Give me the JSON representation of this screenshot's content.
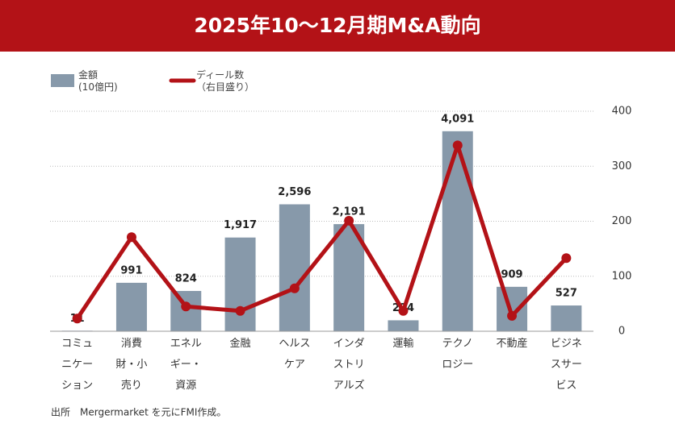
{
  "chart_data": {
    "type": "bar-line",
    "title": "2025年10〜12月期M&A動向",
    "categories": [
      "コミュニケーション",
      "消費財・小売り",
      "エネルギー・資源",
      "金融",
      "ヘルスケア",
      "インダストリアルズ",
      "運輸",
      "テクノロジー",
      "不動産",
      "ビジネスサービス"
    ],
    "series": [
      {
        "name": "金額\n(10億円)",
        "type": "bar",
        "color": "#8799aa",
        "values": [
          11,
          991,
          824,
          1917,
          2596,
          2191,
          224,
          4091,
          909,
          527
        ],
        "value_labels": [
          "11",
          "991",
          "824",
          "1,917",
          "2,596",
          "2,191",
          "224",
          "4,091",
          "909",
          "527"
        ]
      },
      {
        "name": "ディール数\n（右目盛り）",
        "type": "line",
        "axis": "y2",
        "color": "#b31217",
        "values": [
          23,
          171,
          45,
          37,
          78,
          201,
          37,
          338,
          28,
          133
        ]
      }
    ],
    "ylim": [
      0,
      4500
    ],
    "y2lim": [
      0,
      400
    ],
    "y2ticks": [
      0,
      100,
      200,
      300,
      400
    ],
    "grid": true,
    "source": "出所　Mergermarket を元にFMI作成。"
  }
}
